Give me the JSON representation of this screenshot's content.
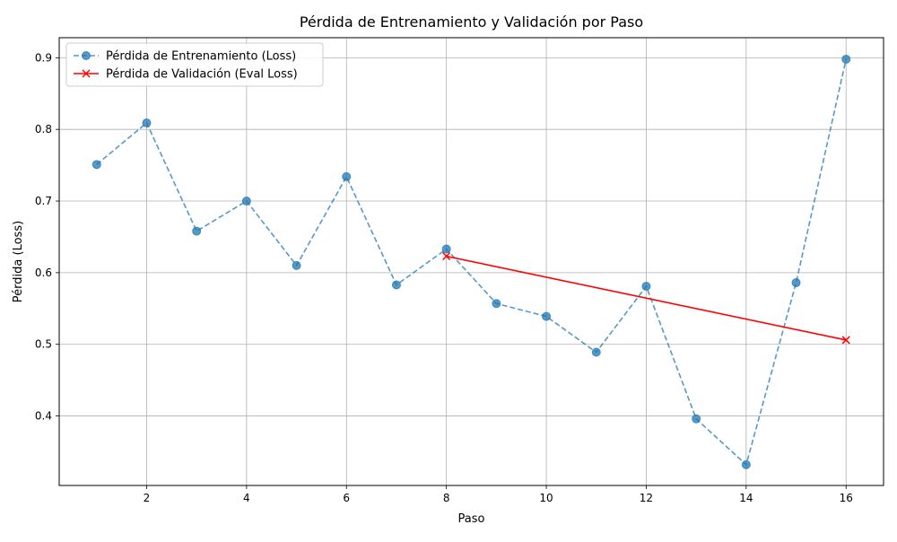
{
  "chart_data": {
    "type": "line",
    "title": "Pérdida de Entrenamiento y Validación por Paso",
    "xlabel": "Paso",
    "ylabel": "Pérdida (Loss)",
    "xlim": [
      0.25,
      16.75
    ],
    "ylim": [
      0.303,
      0.928
    ],
    "xticks": [
      2,
      4,
      6,
      8,
      10,
      12,
      14,
      16
    ],
    "yticks": [
      0.4,
      0.5,
      0.6,
      0.7,
      0.8,
      0.9
    ],
    "grid": true,
    "legend_position": "top-left",
    "series": [
      {
        "name": "Pérdida de Entrenamiento (Loss)",
        "color": "#1f77b4",
        "line_style": "dashed",
        "marker": "circle",
        "x": [
          1,
          2,
          3,
          4,
          5,
          6,
          7,
          8,
          9,
          10,
          11,
          12,
          13,
          14,
          15,
          16
        ],
        "y": [
          0.751,
          0.809,
          0.658,
          0.7,
          0.61,
          0.734,
          0.583,
          0.633,
          0.557,
          0.539,
          0.489,
          0.581,
          0.396,
          0.332,
          0.586,
          0.898
        ]
      },
      {
        "name": "Pérdida de Validación (Eval Loss)",
        "color": "#ff0000",
        "line_style": "solid",
        "marker": "x",
        "x": [
          8,
          16
        ],
        "y": [
          0.623,
          0.506
        ]
      }
    ]
  }
}
